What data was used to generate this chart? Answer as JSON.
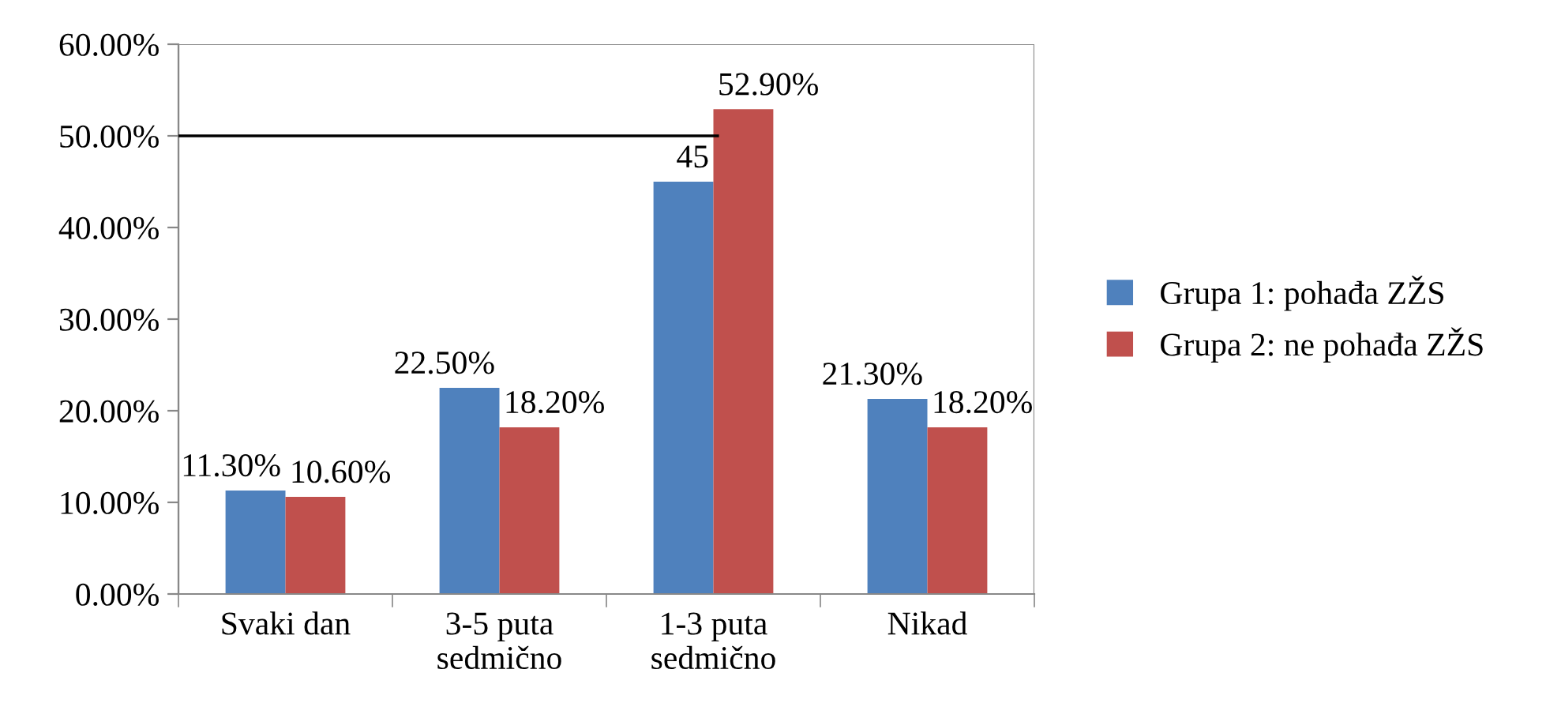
{
  "chart_data": {
    "type": "bar",
    "categories": [
      "Svaki dan",
      "3-5 puta\nsedmično",
      "1-3 puta\nsedmično",
      "Nikad"
    ],
    "series": [
      {
        "name": "Grupa 1: pohađa ZŽS",
        "color": "#4f81bd",
        "values": [
          11.3,
          22.5,
          45,
          21.3
        ],
        "value_labels": [
          "11.30%",
          "22.50%",
          "45",
          "21.30%"
        ]
      },
      {
        "name": "Grupa 2: ne pohađa ZŽS",
        "color": "#c0504d",
        "values": [
          10.6,
          18.2,
          52.9,
          18.2
        ],
        "value_labels": [
          "10.60%",
          "18.20%",
          "52.90%",
          "18.20%"
        ]
      }
    ],
    "ylim": [
      0,
      60
    ],
    "yticks": [
      {
        "value": 0,
        "label": "0.00%"
      },
      {
        "value": 10,
        "label": "10.00%"
      },
      {
        "value": 20,
        "label": "20.00%"
      },
      {
        "value": 30,
        "label": "30.00%"
      },
      {
        "value": 40,
        "label": "40.00%"
      },
      {
        "value": 50,
        "label": "50.00%"
      },
      {
        "value": 60,
        "label": "60.00%"
      }
    ],
    "ref_lines": [
      {
        "axis": "y",
        "value": 50,
        "label": null,
        "color": "#000000"
      }
    ],
    "legend": "right",
    "grid": false
  }
}
